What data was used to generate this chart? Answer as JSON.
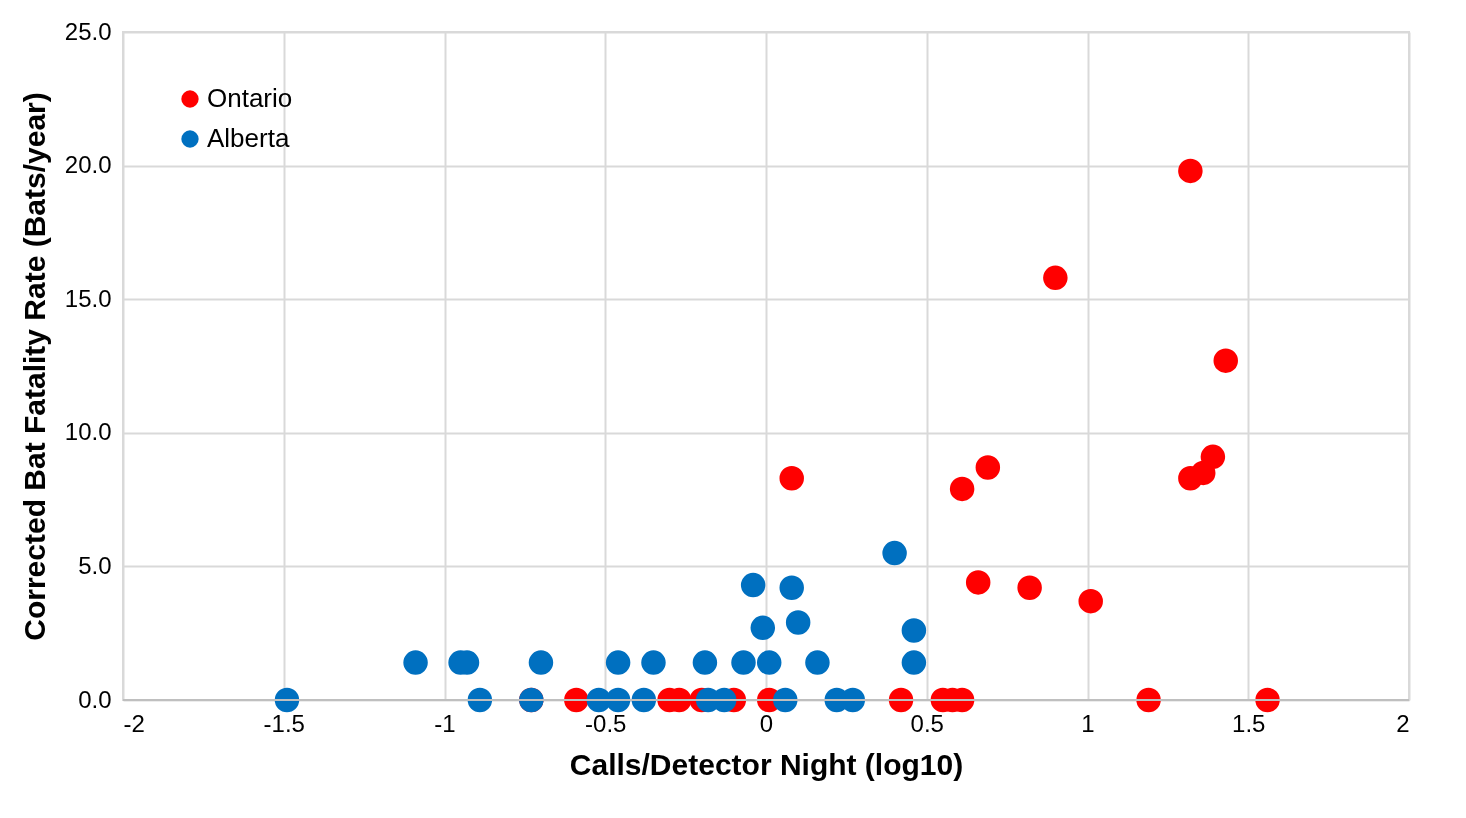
{
  "chart_data": {
    "type": "scatter",
    "xlabel": "Calls/Detector Night (log10)",
    "ylabel": "Corrected Bat Fatality Rate (Bats/year)",
    "xlim": [
      -2,
      2
    ],
    "xticks": [
      -2,
      -1.5,
      -1,
      -0.5,
      0,
      0.5,
      1,
      1.5,
      2
    ],
    "ylim": [
      0,
      25
    ],
    "yticks": [
      {
        "value": 0,
        "label": "0.0"
      },
      {
        "value": 5,
        "label": "5.0"
      },
      {
        "value": 10,
        "label": "10.0"
      },
      {
        "value": 15,
        "label": "15.0"
      },
      {
        "value": 20,
        "label": "20.0"
      },
      {
        "value": 25,
        "label": "25.0"
      }
    ],
    "grid": true,
    "legend": "top left",
    "marker": "circle",
    "series": [
      {
        "name": "Ontario",
        "color": "#ff0000",
        "x": [
          1.32,
          0.9,
          1.43,
          1.39,
          1.36,
          1.32,
          0.08,
          0.61,
          0.69,
          0.66,
          0.82,
          1.01,
          -0.73,
          -0.59,
          -0.3,
          -0.27,
          -0.2,
          -0.1,
          0.01,
          0.42,
          0.55,
          0.58,
          0.61,
          1.19,
          1.56
        ],
        "values": [
          19.8,
          15.8,
          12.7,
          9.1,
          8.5,
          8.3,
          8.3,
          7.9,
          8.7,
          4.4,
          4.2,
          3.7,
          0,
          0,
          0,
          0,
          0,
          0,
          0,
          0,
          0,
          0,
          0,
          0,
          0
        ]
      },
      {
        "name": "Alberta",
        "color": "#0070c0",
        "x": [
          0.4,
          -0.04,
          0.08,
          -0.01,
          0.1,
          0.46,
          -1.09,
          -0.95,
          -0.93,
          -0.7,
          -0.46,
          -0.35,
          -0.19,
          -0.07,
          0.01,
          0.16,
          0.46,
          -1.49,
          -0.89,
          -0.73,
          -0.52,
          -0.46,
          -0.38,
          -0.18,
          -0.13,
          0.06,
          0.22,
          0.27
        ],
        "values": [
          5.5,
          4.3,
          4.2,
          2.7,
          2.9,
          2.6,
          1.4,
          1.4,
          1.4,
          1.4,
          1.4,
          1.4,
          1.4,
          1.4,
          1.4,
          1.4,
          1.4,
          0,
          0,
          0,
          0,
          0,
          0,
          0,
          0,
          0,
          0,
          0
        ]
      }
    ]
  }
}
